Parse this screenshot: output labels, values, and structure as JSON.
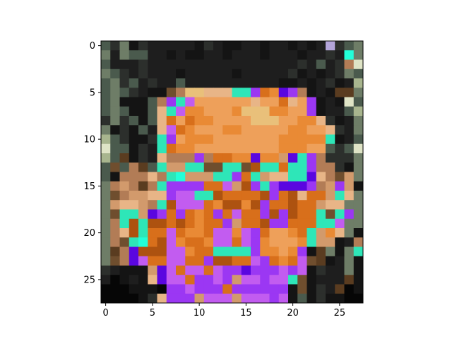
{
  "chart_data": {
    "type": "heatmap",
    "title": "",
    "xlabel": "",
    "ylabel": "",
    "xlim": [
      -0.5,
      27.5
    ],
    "ylim": [
      27.5,
      -0.5
    ],
    "x_ticks": [
      0,
      5,
      10,
      15,
      20,
      25
    ],
    "y_ticks": [
      0,
      5,
      10,
      15,
      20,
      25
    ],
    "x_tick_labels": [
      "0",
      "5",
      "10",
      "15",
      "20",
      "25"
    ],
    "y_tick_labels": [
      "0",
      "5",
      "10",
      "15",
      "20",
      "25"
    ],
    "grid": false,
    "pixel_size": 28,
    "palette": {
      "k": "#060606",
      "d": "#141414",
      "D": "#1e1e1e",
      "g": "#2c2f2c",
      "G": "#4a5a4d",
      "m": "#6e7d67",
      "l": "#a8b58e",
      "w": "#dfe4c6",
      "b": "#5a3c20",
      "n": "#6f4e2e",
      "t": "#b27c56",
      "p": "#d29a6c",
      "s": "#e8b587",
      "o": "#d86f1b",
      "O": "#e98a35",
      "a": "#eea05a",
      "y": "#e9c07a",
      "r": "#ad5210",
      "c": "#2ee6b8",
      "C": "#22ffd8",
      "v": "#9b37f3",
      "V": "#5a06e0",
      "P": "#c25cf0",
      "L": "#b3a4d9",
      "u": "#1a3b60"
    },
    "rows": [
      "GgmdgDDDDDdgDddDDdDDdDdDLgGm",
      "mDmGGDDdDddDDdDDDdDDDdDDgDCm",
      "GDDDgDDDDDDDDDDDDDDDDgDGDgtw",
      "mGgDgDDDdDDDDDdDDDDDgdDdDgmG",
      "GmgGDgDDGDDDDDDDDDDddDdDgdDl",
      "GmGgDddntyysssccvoOVvtdDdbbm",
      "GmdddGtvcPaaaaaasaaosavdDdwG",
      "GmGddGscPOOaaaOyyyOOaavdDDGl",
      "gmgGdGsoaoOOaaaayyyaaOOsgdDm",
      "mdgdGDsPoOaaaOOaaaaaOOaasgDm",
      "lGgddgcvaOOOaaaaaaaOOOOOcdDG",
      "wGGdgDcoOOaaaaaaaaaOOOaaGgGw",
      "lGbdgDstttvtooOOVOOpVcvtgggm",
      "GnGtbGcppccnnccnrccoccvttgdm",
      "GdtttstcCpppccvocpssccVstnpm",
      "mtptbtcvvvvooPprvcvVVVvtpvpd",
      "mntppssvPPccroooorvorsoopcsm",
      "mpssptcrPPPoOrrOrvooroopssmm",
      "mnccpVvovoOovoPoovrvroocncvm",
      "mtcrcrroroOoovpoorvvoooccPmm",
      "mtsrcooPoOOoPPOPvoaaOocpOsmd",
      "mtncCorPOooOPPoPvOaaaOcppdDt",
      "mbtVrrrPPOooccccvOOaOvdbmdmc",
      "mntVPooPPoovrrooPvoOoPnbdDmd",
      "gDdddpVPoPPoPvvVvvvPvPdgDDmd",
      "DkdDdsVPPovvPvpPPvPPcndDDDbd",
      "kkkdddkvvPvvvovvvvvvdndgDbkd",
      "kkkkdgsvvvpPPPpPPPvPdGdgddkk"
    ]
  }
}
